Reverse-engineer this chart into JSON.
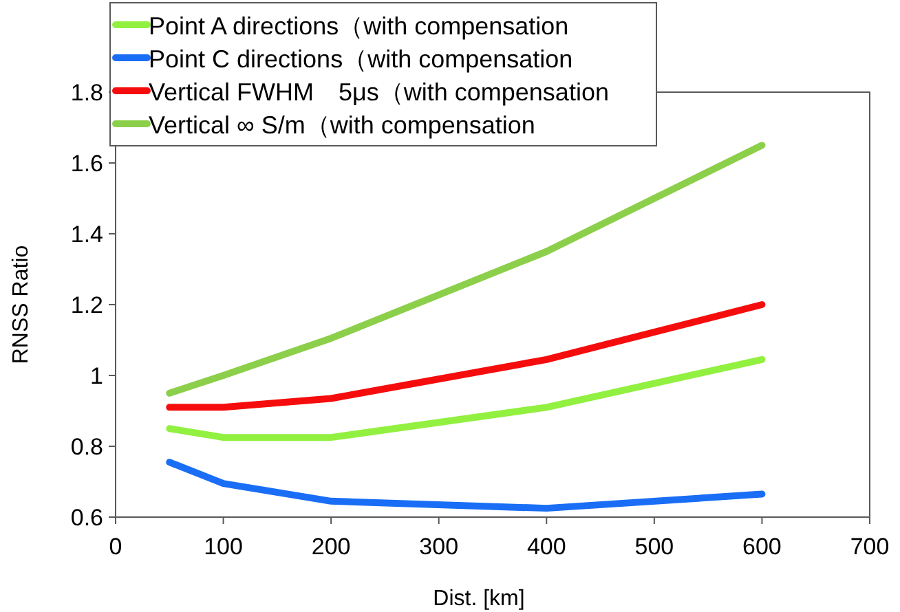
{
  "chart_data": {
    "type": "line",
    "xlabel": "Dist. [km]",
    "ylabel": "RNSS  Ratio",
    "x": [
      50,
      100,
      200,
      400,
      600
    ],
    "series": [
      {
        "name": "Point A directions（with compensation",
        "color": "#92f040",
        "values": [
          0.85,
          0.825,
          0.825,
          0.91,
          1.045
        ]
      },
      {
        "name": "Point C directions（with compensation",
        "color": "#1a6ef5",
        "values": [
          0.755,
          0.695,
          0.645,
          0.625,
          0.665
        ]
      },
      {
        "name": "Vertical FWHM　5μs（with compensation",
        "color": "#f50d0d",
        "values": [
          0.91,
          0.91,
          0.935,
          1.045,
          1.2
        ]
      },
      {
        "name": "Vertical ∞ S/m（with compensation",
        "color": "#8ccf4a",
        "values": [
          0.95,
          1.0,
          1.105,
          1.35,
          1.65
        ]
      }
    ],
    "xlim": [
      0,
      700
    ],
    "xticks": [
      0,
      100,
      200,
      300,
      400,
      500,
      600,
      700
    ],
    "ylim": [
      0.6,
      1.8
    ],
    "yticks": [
      0.6,
      0.8,
      1,
      1.2,
      1.4,
      1.6,
      1.8
    ],
    "grid": false,
    "legend": "top left",
    "marker": "none",
    "line_style": "solid"
  }
}
